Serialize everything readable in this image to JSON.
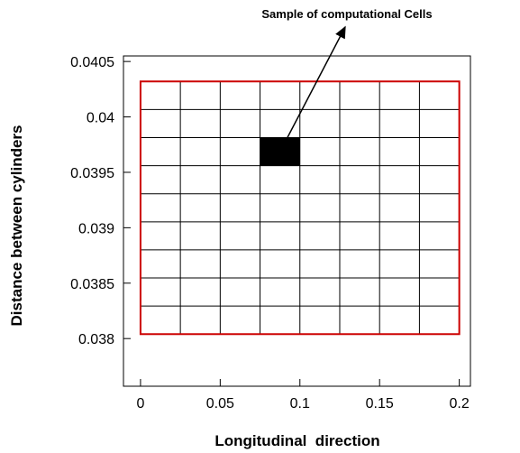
{
  "chart_data": {
    "type": "mesh",
    "annotation": "Sample of computational Cells",
    "x_label": "Longitudinal  direction",
    "y_label": "Distance between cylinders",
    "xlim": [
      -0.0107,
      0.207
    ],
    "ylim": [
      0.03757,
      0.04055
    ],
    "xticks": [
      0,
      0.05,
      0.1,
      0.15,
      0.2
    ],
    "yticks": [
      0.038,
      0.0385,
      0.039,
      0.0395,
      0.04,
      0.0405
    ],
    "mesh": {
      "x": [
        0,
        0.2
      ],
      "y": [
        0.03804,
        0.04032
      ],
      "columns": 8,
      "rows": 9,
      "line_color": "#000000",
      "border_color": "#cc0000"
    },
    "highlight_cell": {
      "x": [
        0.075,
        0.1
      ],
      "y": [
        0.03956,
        0.03981
      ],
      "color": "#000000"
    }
  }
}
